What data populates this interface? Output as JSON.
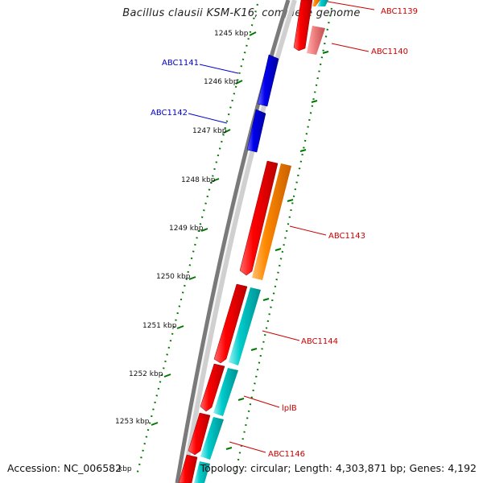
{
  "header": {
    "title": "Bacillus clausii KSM-K16, complete genome"
  },
  "footer": {
    "accession": "Accession: NC_006582",
    "stats": "Topology: circular; Length: 4,303,871 bp; Genes: 4,192"
  },
  "ruler": {
    "unit": "kbp",
    "ticks": [
      {
        "label": "1245 kbp"
      },
      {
        "label": "1246 kbp"
      },
      {
        "label": "1247 kbp"
      },
      {
        "label": "1248 kbp"
      },
      {
        "label": "1249 kbp"
      },
      {
        "label": "1250 kbp"
      },
      {
        "label": "1251 kbp"
      },
      {
        "label": "1252 kbp"
      },
      {
        "label": "1253 kbp"
      },
      {
        "label": "kbp"
      }
    ]
  },
  "genes": [
    {
      "name": "ABC1139",
      "strand": "plus",
      "color": "#dd0000"
    },
    {
      "name": "ABC1140",
      "strand": "plus",
      "color": "#dd0000"
    },
    {
      "name": "ABC1141",
      "strand": "minus",
      "color": "#0000cc"
    },
    {
      "name": "ABC1142",
      "strand": "minus",
      "color": "#0000cc"
    },
    {
      "name": "ABC1143",
      "strand": "plus",
      "color": "#dd0000"
    },
    {
      "name": "ABC1144",
      "strand": "plus",
      "color": "#dd0000"
    },
    {
      "name": "lplB",
      "strand": "plus",
      "color": "#dd0000"
    },
    {
      "name": "ABC1146",
      "strand": "plus",
      "color": "#dd0000"
    }
  ],
  "colors": {
    "cds_plus": "#ee0000",
    "cds_minus": "#0000ee",
    "cog_orange": "#ff8800",
    "cog_cyan": "#00c8c8",
    "cog_pink": "#f08080",
    "backbone": "#888888",
    "ruler_ticks": "#007700",
    "label_plus": "#cc0000",
    "label_minus": "#0000cc"
  }
}
